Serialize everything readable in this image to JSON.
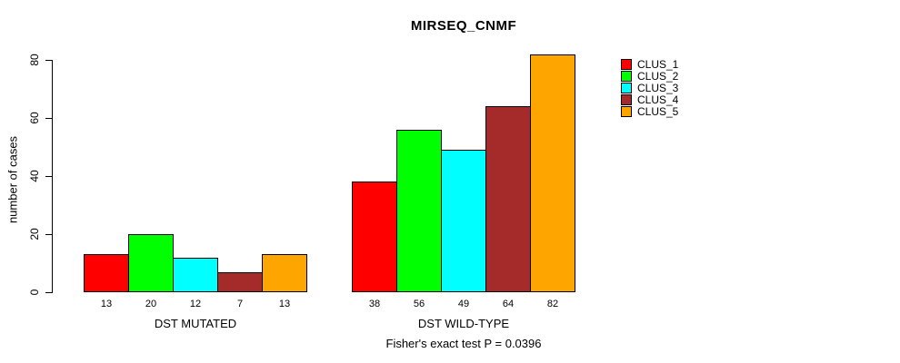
{
  "chart_data": {
    "type": "bar",
    "title": "MIRSEQ_CNMF",
    "ylabel": "number of cases",
    "ylim": [
      0,
      80
    ],
    "yticks": [
      0,
      20,
      40,
      60,
      80
    ],
    "grid": false,
    "legend_position": "top-right",
    "categories": [
      "DST MUTATED",
      "DST WILD-TYPE"
    ],
    "series": [
      {
        "name": "CLUS_1",
        "color": "#FF0000",
        "values": [
          13,
          38
        ]
      },
      {
        "name": "CLUS_2",
        "color": "#00FF00",
        "values": [
          20,
          56
        ]
      },
      {
        "name": "CLUS_3",
        "color": "#00FFFF",
        "values": [
          12,
          49
        ]
      },
      {
        "name": "CLUS_4",
        "color": "#A52A2A",
        "values": [
          7,
          64
        ]
      },
      {
        "name": "CLUS_5",
        "color": "#FFA500",
        "values": [
          13,
          82
        ]
      }
    ],
    "bar_value_labels": true,
    "footnote": "Fisher's exact test P = 0.0396"
  }
}
